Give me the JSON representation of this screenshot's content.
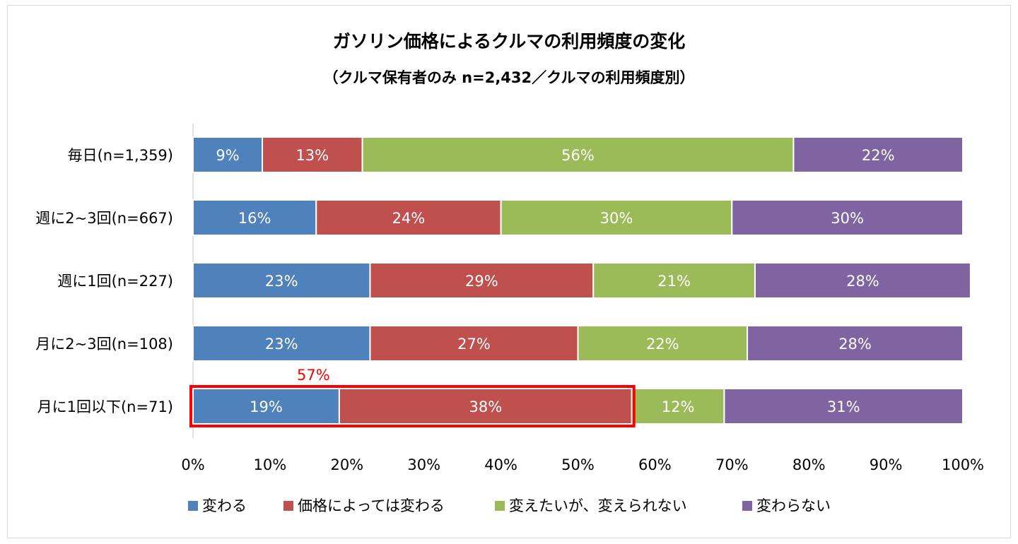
{
  "chart_data": {
    "type": "bar",
    "orientation": "horizontal",
    "stacked": "percent",
    "title": "ガソリン価格によるクルマの利用頻度の変化",
    "subtitle": "（クルマ保有者のみ n=2,432／クルマの利用頻度別）",
    "categories": [
      "毎日(n=1,359)",
      "週に2~3回(n=667)",
      "週に1回(n=227)",
      "月に2~3回(n=108)",
      "月に1回以下(n=71)"
    ],
    "series": [
      {
        "name": "変わる",
        "color": "#4f81bd",
        "values": [
          9,
          16,
          23,
          23,
          19
        ],
        "labels": [
          "9%",
          "16%",
          "23%",
          "23%",
          "19%"
        ]
      },
      {
        "name": "価格によっては変わる",
        "color": "#c0504d",
        "values": [
          13,
          24,
          29,
          27,
          38
        ],
        "labels": [
          "13%",
          "24%",
          "29%",
          "27%",
          "38%"
        ]
      },
      {
        "name": "変えたいが、変えられない",
        "color": "#9bbb59",
        "values": [
          56,
          30,
          21,
          22,
          12
        ],
        "labels": [
          "56%",
          "30%",
          "21%",
          "22%",
          "12%"
        ]
      },
      {
        "name": "変わらない",
        "color": "#8064a2",
        "values": [
          22,
          30,
          28,
          28,
          31
        ],
        "labels": [
          "22%",
          "30%",
          "28%",
          "28%",
          "31%"
        ]
      }
    ],
    "xlim": [
      0,
      100
    ],
    "xticks": [
      "0%",
      "10%",
      "20%",
      "30%",
      "40%",
      "50%",
      "60%",
      "70%",
      "80%",
      "90%",
      "100%"
    ],
    "grid": false,
    "legend": "bottom",
    "annotation": {
      "category_index": 4,
      "from": 0,
      "to": 57,
      "label": "57%",
      "color": "#ff0000"
    }
  }
}
